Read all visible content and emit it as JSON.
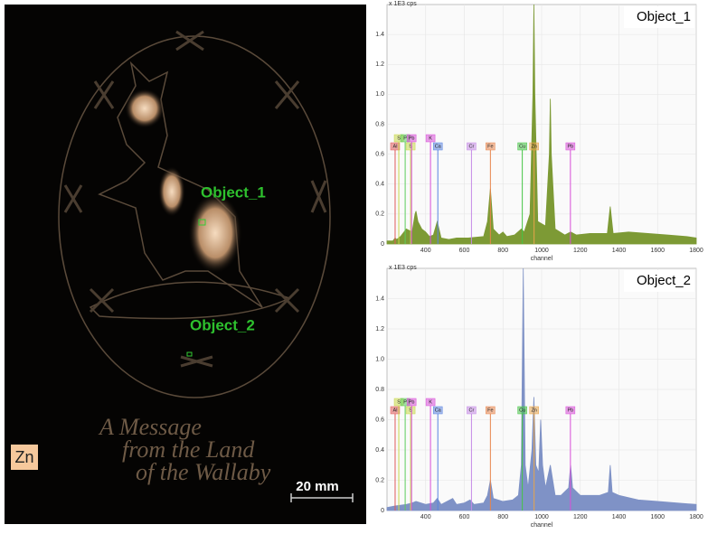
{
  "image": {
    "element": "Zn",
    "scale_bar": "20 mm",
    "objects": [
      "Object_1",
      "Object_2"
    ],
    "inscription": [
      "A Message",
      "from the Land",
      "of the Wallaby"
    ]
  },
  "chart_data": [
    {
      "type": "area",
      "title": "Object_1",
      "y_label": "x 1E3 cps",
      "x_label": "channel",
      "grid": true,
      "xlim": [
        200,
        1800
      ],
      "ylim": [
        0,
        1.6
      ],
      "xticks": [
        400,
        600,
        800,
        1000,
        1200,
        1400,
        1600,
        1800
      ],
      "yticks": [
        0,
        0.2,
        0.4,
        0.6,
        0.8,
        {
          "value": 1,
          "label": "1.0"
        },
        1.2,
        1.4
      ],
      "x": [
        200,
        230,
        242,
        250,
        270,
        300,
        330,
        345,
        350,
        360,
        380,
        400,
        420,
        440,
        460,
        480,
        520,
        560,
        620,
        700,
        720,
        735,
        750,
        780,
        800,
        820,
        860,
        895,
        910,
        940,
        955,
        960,
        965,
        980,
        1020,
        1040,
        1045,
        1050,
        1070,
        1120,
        1150,
        1180,
        1250,
        1340,
        1355,
        1370,
        1450,
        1550,
        1650,
        1750,
        1800
      ],
      "series": [
        {
          "color": "#7d9a35",
          "values": [
            0.02,
            0.02,
            0.04,
            0.03,
            0.05,
            0.1,
            0.08,
            0.2,
            0.22,
            0.15,
            0.1,
            0.08,
            0.05,
            0.06,
            0.15,
            0.04,
            0.03,
            0.04,
            0.04,
            0.05,
            0.15,
            0.37,
            0.1,
            0.06,
            0.08,
            0.05,
            0.06,
            0.1,
            0.08,
            0.2,
            1.0,
            1.6,
            1.0,
            0.15,
            0.12,
            0.6,
            0.97,
            0.6,
            0.1,
            0.06,
            0.08,
            0.06,
            0.07,
            0.07,
            0.25,
            0.07,
            0.08,
            0.07,
            0.06,
            0.05,
            0.04
          ]
        }
      ],
      "annotations": [
        {
          "label": "Al",
          "channel": 242,
          "color": "#e05a5a"
        },
        {
          "label": "S",
          "channel": 261,
          "color": "#c8d84a"
        },
        {
          "label": "P",
          "channel": 294,
          "color": "#5ccc5c"
        },
        {
          "label": "S",
          "channel": 322,
          "color": "#c8d84a"
        },
        {
          "label": "Pb",
          "channel": 327,
          "color": "#d94ed9"
        },
        {
          "label": "K",
          "channel": 425,
          "color": "#d94ed9"
        },
        {
          "label": "Ca",
          "channel": 463,
          "color": "#5a84e0"
        },
        {
          "label": "Cr",
          "channel": 637,
          "color": "#c58ae6"
        },
        {
          "label": "Fe",
          "channel": 735,
          "color": "#e8844a"
        },
        {
          "label": "Cu",
          "channel": 900,
          "color": "#44c444"
        },
        {
          "label": "Zn",
          "channel": 961,
          "color": "#e8a44a"
        },
        {
          "label": "Pb",
          "channel": 1149,
          "color": "#d94ed9"
        }
      ]
    },
    {
      "type": "area",
      "title": "Object_2",
      "y_label": "x 1E3 cps",
      "x_label": "channel",
      "grid": true,
      "xlim": [
        200,
        1800
      ],
      "ylim": [
        0,
        1.6
      ],
      "xticks": [
        400,
        600,
        800,
        1000,
        1200,
        1400,
        1600,
        1800
      ],
      "yticks": [
        0,
        0.2,
        0.4,
        0.6,
        0.8,
        {
          "value": 1,
          "label": "1.0"
        },
        1.2,
        1.4
      ],
      "x": [
        200,
        240,
        300,
        330,
        350,
        400,
        440,
        460,
        480,
        540,
        560,
        600,
        630,
        650,
        700,
        720,
        735,
        750,
        800,
        850,
        880,
        895,
        905,
        915,
        930,
        950,
        960,
        970,
        985,
        995,
        1005,
        1020,
        1045,
        1070,
        1100,
        1140,
        1150,
        1160,
        1200,
        1300,
        1345,
        1355,
        1365,
        1400,
        1500,
        1600,
        1700,
        1800
      ],
      "series": [
        {
          "color": "#7f92c6",
          "values": [
            0.02,
            0.03,
            0.04,
            0.05,
            0.06,
            0.04,
            0.05,
            0.08,
            0.04,
            0.08,
            0.04,
            0.05,
            0.07,
            0.04,
            0.05,
            0.1,
            0.2,
            0.08,
            0.06,
            0.07,
            0.1,
            0.3,
            1.6,
            0.3,
            0.15,
            0.4,
            0.75,
            0.3,
            0.25,
            0.6,
            0.3,
            0.15,
            0.3,
            0.1,
            0.1,
            0.15,
            0.3,
            0.15,
            0.1,
            0.1,
            0.12,
            0.3,
            0.12,
            0.1,
            0.07,
            0.06,
            0.05,
            0.04
          ]
        }
      ],
      "annotations": [
        {
          "label": "Al",
          "channel": 242,
          "color": "#e05a5a"
        },
        {
          "label": "S",
          "channel": 261,
          "color": "#c8d84a"
        },
        {
          "label": "P",
          "channel": 294,
          "color": "#5ccc5c"
        },
        {
          "label": "S",
          "channel": 322,
          "color": "#c8d84a"
        },
        {
          "label": "Pb",
          "channel": 327,
          "color": "#d94ed9"
        },
        {
          "label": "K",
          "channel": 425,
          "color": "#d94ed9"
        },
        {
          "label": "Ca",
          "channel": 463,
          "color": "#5a84e0"
        },
        {
          "label": "Cr",
          "channel": 637,
          "color": "#c58ae6"
        },
        {
          "label": "Fe",
          "channel": 735,
          "color": "#e8844a"
        },
        {
          "label": "Cu",
          "channel": 900,
          "color": "#44c444"
        },
        {
          "label": "Zn",
          "channel": 961,
          "color": "#e8a44a"
        },
        {
          "label": "Pb",
          "channel": 1149,
          "color": "#d94ed9"
        }
      ]
    }
  ]
}
